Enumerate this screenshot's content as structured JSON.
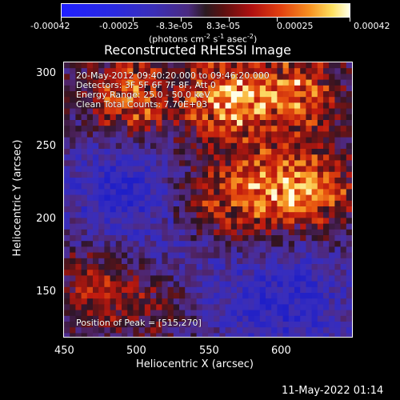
{
  "colorbar": {
    "tick_labels": [
      "-0.00042",
      "-0.00025",
      "-8.3e-05",
      "8.3e-05",
      "0.00025",
      "0.00042"
    ],
    "units_label": "(photons cm",
    "units_sup1": "-2",
    "units_mid1": " s",
    "units_sup2": "-1",
    "units_mid2": " asec",
    "units_sup3": "-2",
    "units_end": ")"
  },
  "image": {
    "title": "Reconstructed RHESSI Image",
    "info_lines": [
      "20-May-2012 09:40:20.000 to 09:46:20.000",
      "Detectors: 3F 5F 6F 7F 8F, Att 0",
      "Energy Range: 25.0 - 50.0 keV",
      "Clean    Total Counts: 7.70E+03"
    ],
    "peak_text": "Position of Peak = [515,270]",
    "x_axis_label": "Heliocentric X (arcsec)",
    "y_axis_label": "Heliocentric Y (arcsec)",
    "x_ticks": [
      "450",
      "500",
      "550",
      "600"
    ],
    "y_ticks": [
      "300",
      "250",
      "200",
      "150"
    ]
  },
  "footer_timestamp": "11-May-2022 01:14"
}
